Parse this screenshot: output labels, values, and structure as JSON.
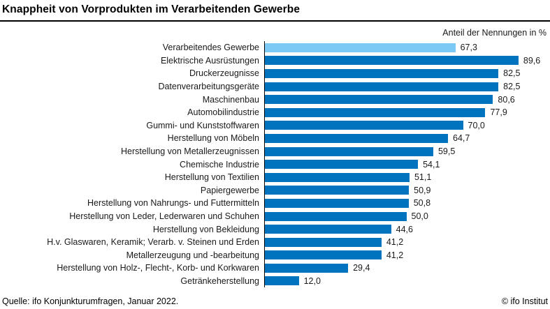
{
  "header": {
    "title": "Knappheit von Vorprodukten im Verarbeitenden Gewerbe",
    "subtitle": "Anteil der Nennungen in %"
  },
  "footer": {
    "source": "Quelle: ifo Konjunkturumfragen, Januar 2022.",
    "copyright": "© ifo Institut"
  },
  "colors": {
    "bar": "#0073BE",
    "highlight_bar": "#7DC9F5",
    "axis": "#000000"
  },
  "chart_data": {
    "type": "bar",
    "orientation": "horizontal",
    "title": "Knappheit von Vorprodukten im Verarbeitenden Gewerbe",
    "value_axis_label": "Anteil der Nennungen in %",
    "xlim": [
      0,
      100
    ],
    "grid": false,
    "legend": false,
    "highlighted_category": "Verarbeitendes Gewerbe",
    "categories": [
      "Verarbeitendes Gewerbe",
      "Elektrische Ausrüstungen",
      "Druckerzeugnisse",
      "Datenverarbeitungsgeräte",
      "Maschinenbau",
      "Automobilindustrie",
      "Gummi- und Kunststoffwaren",
      "Herstellung von Möbeln",
      "Herstellung von Metallerzeugnissen",
      "Chemische Industrie",
      "Herstellung von Textilien",
      "Papiergewerbe",
      "Herstellung von Nahrungs- und Futtermitteln",
      "Herstellung von Leder, Lederwaren und Schuhen",
      "Herstellung von Bekleidung",
      "H.v. Glaswaren, Keramik; Verarb. v. Steinen und Erden",
      "Metallerzeugung und -bearbeitung",
      "Herstellung von Holz-, Flecht-, Korb- und Korkwaren",
      "Getränkeherstellung"
    ],
    "values": [
      67.3,
      89.6,
      82.5,
      82.5,
      80.6,
      77.9,
      70.0,
      64.7,
      59.5,
      54.1,
      51.1,
      50.9,
      50.8,
      50.0,
      44.6,
      41.2,
      41.2,
      29.4,
      12.0
    ],
    "value_labels": [
      "67,3",
      "89,6",
      "82,5",
      "82,5",
      "80,6",
      "77,9",
      "70,0",
      "64,7",
      "59,5",
      "54,1",
      "51,1",
      "50,9",
      "50,8",
      "50,0",
      "44,6",
      "41,2",
      "41,2",
      "29,4",
      "12,0"
    ]
  }
}
